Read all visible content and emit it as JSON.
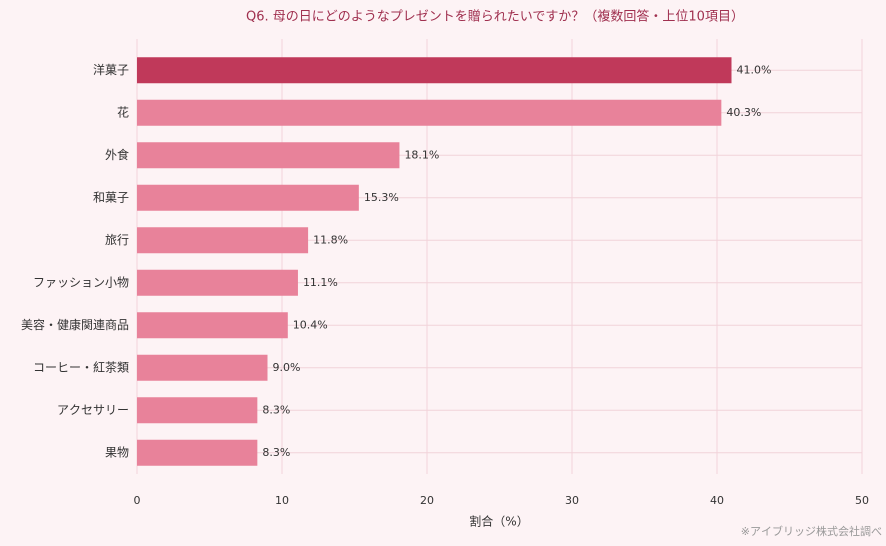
{
  "chart_data": {
    "type": "barh",
    "title": "Q6. 母の日にどのようなプレゼントを贈られたいですか？（複数回答・上位10項目）",
    "categories": [
      "洋菓子",
      "花",
      "外食",
      "和菓子",
      "旅行",
      "ファッション小物",
      "美容・健康関連商品",
      "コーヒー・紅茶類",
      "アクセサリー",
      "果物"
    ],
    "values": [
      41.0,
      40.3,
      18.1,
      15.3,
      11.8,
      11.1,
      10.4,
      9.0,
      8.3,
      8.3
    ],
    "value_labels": [
      "41.0%",
      "40.3%",
      "18.1%",
      "15.3%",
      "11.8%",
      "11.1%",
      "10.4%",
      "9.0%",
      "8.3%",
      "8.3%"
    ],
    "colors": [
      "#c0395a",
      "#e8829a",
      "#e8829a",
      "#e8829a",
      "#e8829a",
      "#e8829a",
      "#e8829a",
      "#e8829a",
      "#e8829a",
      "#e8829a"
    ],
    "xlim": [
      0,
      50
    ],
    "xticks": [
      0,
      10,
      20,
      30,
      40,
      50
    ],
    "xlabel": "割合（%）",
    "grid": true,
    "note": "※アイブリッジ株式会社調べ"
  }
}
